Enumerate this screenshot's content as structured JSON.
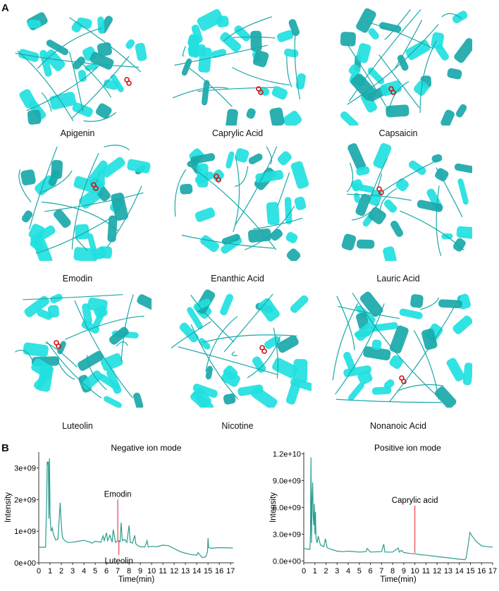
{
  "panel_a": {
    "letter": "A",
    "structures": [
      {
        "label": "Apigenin"
      },
      {
        "label": "Caprylic Acid"
      },
      {
        "label": "Capsaicin"
      },
      {
        "label": "Emodin"
      },
      {
        "label": "Enanthic Acid"
      },
      {
        "label": "Lauric Acid"
      },
      {
        "label": "Luteolin"
      },
      {
        "label": "Nicotine"
      },
      {
        "label": "Nonanoic Acid"
      }
    ],
    "colors": {
      "protein": "#22e0e0",
      "protein_dark": "#1aa8aa",
      "ligand": "#d01010"
    }
  },
  "panel_b": {
    "letter": "B"
  },
  "chart_data": [
    {
      "type": "line",
      "title": "Negative ion mode",
      "xlabel": "Time(min)",
      "ylabel": "Intensity",
      "xlim": [
        0,
        17.3
      ],
      "ylim": [
        0,
        3500000000.0
      ],
      "xticks": [
        "0",
        "1",
        "2",
        "3",
        "4",
        "5",
        "6",
        "7",
        "8",
        "9",
        "10",
        "11",
        "12",
        "13",
        "14",
        "15",
        "16",
        "17"
      ],
      "yticks": [
        "0e+00",
        "1e+09",
        "2e+09",
        "3e+09"
      ],
      "ytick_values": [
        0,
        1000000000.0,
        2000000000.0,
        3000000000.0
      ],
      "grid": false,
      "line_color": "#2a9d8f",
      "x": [
        0,
        0.6,
        0.65,
        0.7,
        0.75,
        0.8,
        0.85,
        0.9,
        0.95,
        1.0,
        1.05,
        1.1,
        1.2,
        1.3,
        1.5,
        1.7,
        1.9,
        2.0,
        2.1,
        2.3,
        2.6,
        3.0,
        3.5,
        4.0,
        4.5,
        4.7,
        5.0,
        5.5,
        5.7,
        5.8,
        6.0,
        6.1,
        6.3,
        6.5,
        6.6,
        6.8,
        7.0,
        7.2,
        7.3,
        7.4,
        7.6,
        7.8,
        8.0,
        8.1,
        8.3,
        8.5,
        8.6,
        8.8,
        9.0,
        9.4,
        9.6,
        9.7,
        10.0,
        10.5,
        11.0,
        11.5,
        12.0,
        12.5,
        13.0,
        13.5,
        14.0,
        14.1,
        14.5,
        14.8,
        14.95,
        15.0,
        15.05,
        15.3,
        16.0,
        17.0,
        17.2
      ],
      "y": [
        490000000.0,
        490000000.0,
        1200000000.0,
        1950000000.0,
        3200000000.0,
        3100000000.0,
        3200000000.0,
        1400000000.0,
        3300000000.0,
        1500000000.0,
        1200000000.0,
        1000000000.0,
        1100000000.0,
        900000000.0,
        720000000.0,
        750000000.0,
        1900000000.0,
        1200000000.0,
        800000000.0,
        700000000.0,
        640000000.0,
        650000000.0,
        680000000.0,
        710000000.0,
        660000000.0,
        620000000.0,
        680000000.0,
        650000000.0,
        850000000.0,
        700000000.0,
        950000000.0,
        700000000.0,
        870000000.0,
        650000000.0,
        1050000000.0,
        640000000.0,
        700000000.0,
        660000000.0,
        1270000000.0,
        700000000.0,
        740000000.0,
        640000000.0,
        1180000000.0,
        650000000.0,
        620000000.0,
        870000000.0,
        600000000.0,
        540000000.0,
        510000000.0,
        500000000.0,
        700000000.0,
        500000000.0,
        520000000.0,
        510000000.0,
        560000000.0,
        540000000.0,
        450000000.0,
        360000000.0,
        300000000.0,
        260000000.0,
        240000000.0,
        320000000.0,
        160000000.0,
        190000000.0,
        350000000.0,
        780000000.0,
        480000000.0,
        460000000.0,
        480000000.0,
        470000000.0,
        460000000.0
      ],
      "annotations": [
        {
          "text": "Emodin",
          "x": 7.0,
          "position": "above",
          "line_top": 2000000000.0,
          "line_bottom": 700000000.0,
          "color": "#e0202a"
        },
        {
          "text": "Luteolin",
          "x": 7.1,
          "position": "below",
          "line_top": 700000000.0,
          "line_bottom": 250000000.0,
          "color": "#e0202a"
        }
      ]
    },
    {
      "type": "line",
      "title": "Positive ion mode",
      "xlabel": "Time(min)",
      "ylabel": "Intensity",
      "xlim": [
        0,
        17
      ],
      "ylim": [
        -200000000.0,
        12200000000.0
      ],
      "xticks": [
        "0",
        "1",
        "2",
        "3",
        "4",
        "5",
        "6",
        "7",
        "8",
        "9",
        "10",
        "11",
        "12",
        "13",
        "14",
        "15",
        "16",
        "17"
      ],
      "yticks": [
        "0.0e+00",
        "3.0e+09",
        "6.0e+09",
        "9.0e+09",
        "1.2e+10"
      ],
      "ytick_values": [
        0,
        3000000000.0,
        6000000000.0,
        9000000000.0,
        12000000000.0
      ],
      "grid": false,
      "line_color": "#2a9d8f",
      "x": [
        0,
        0.55,
        0.6,
        0.65,
        0.7,
        0.75,
        0.8,
        0.85,
        0.9,
        0.95,
        1.0,
        1.05,
        1.1,
        1.2,
        1.3,
        1.5,
        1.8,
        1.95,
        2.1,
        2.5,
        3.0,
        3.5,
        4.0,
        5.0,
        5.6,
        5.7,
        6.0,
        7.0,
        7.2,
        7.3,
        7.5,
        8.0,
        8.5,
        8.6,
        8.8,
        9.0,
        9.5,
        10.0,
        10.5,
        11.0,
        12.0,
        13.0,
        14.0,
        14.5,
        14.6,
        14.8,
        14.95,
        15.1,
        15.5,
        16.0,
        16.5,
        17.0
      ],
      "y": [
        1400000000.0,
        1300000000.0,
        3000000000.0,
        11600000000.0,
        2000000000.0,
        7000000000.0,
        8800000000.0,
        5000000000.0,
        4000000000.0,
        6400000000.0,
        3000000000.0,
        5500000000.0,
        2600000000.0,
        2000000000.0,
        2800000000.0,
        1800000000.0,
        1600000000.0,
        2500000000.0,
        1500000000.0,
        1300000000.0,
        1100000000.0,
        1050000000.0,
        1100000000.0,
        1000000000.0,
        1050000000.0,
        1400000000.0,
        1000000000.0,
        1050000000.0,
        1900000000.0,
        1000000000.0,
        1000000000.0,
        1000000000.0,
        1450000000.0,
        1000000000.0,
        1200000000.0,
        950000000.0,
        850000000.0,
        800000000.0,
        700000000.0,
        650000000.0,
        500000000.0,
        350000000.0,
        200000000.0,
        150000000.0,
        300000000.0,
        1800000000.0,
        3200000000.0,
        2900000000.0,
        2200000000.0,
        1700000000.0,
        1600000000.0,
        1550000000.0
      ],
      "annotations": [
        {
          "text": "Caprylic acid",
          "x": 10.0,
          "position": "above",
          "line_top": 6200000000.0,
          "line_bottom": 900000000.0,
          "color": "#e0202a"
        }
      ]
    }
  ]
}
